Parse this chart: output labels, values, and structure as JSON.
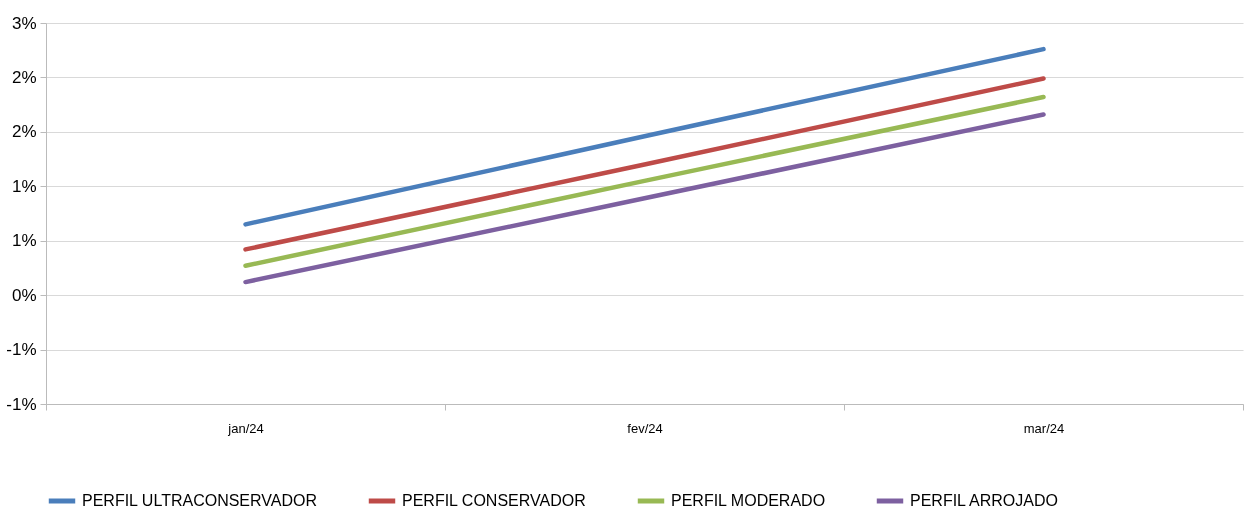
{
  "chart_data": {
    "type": "line",
    "categories": [
      "jan/24",
      "fev/24",
      "mar/24"
    ],
    "series": [
      {
        "name": "PERFIL ULTRACONSERVADOR",
        "color": "#4a7ebb",
        "values": [
          0.65,
          1.46,
          2.26
        ]
      },
      {
        "name": "PERFIL CONSERVADOR",
        "color": "#be4b48",
        "values": [
          0.42,
          1.2,
          1.99
        ]
      },
      {
        "name": "PERFIL MODERADO",
        "color": "#98b954",
        "values": [
          0.27,
          1.05,
          1.82
        ]
      },
      {
        "name": "PERFIL ARROJADO",
        "color": "#7d60a0",
        "values": [
          0.12,
          0.89,
          1.66
        ]
      }
    ],
    "ylim": [
      -1.0,
      2.5
    ],
    "yticks": [
      {
        "value": -1.0,
        "label": "-1%"
      },
      {
        "value": -0.5,
        "label": "-1%"
      },
      {
        "value": 0,
        "label": "0%"
      },
      {
        "value": 0.5,
        "label": "1%"
      },
      {
        "value": 1.0,
        "label": "1%"
      },
      {
        "value": 1.5,
        "label": "2%"
      },
      {
        "value": 2.0,
        "label": "2%"
      },
      {
        "value": 2.5,
        "label": "3%"
      }
    ],
    "grid": "y",
    "legend": "bottom",
    "line_style": "solid"
  }
}
